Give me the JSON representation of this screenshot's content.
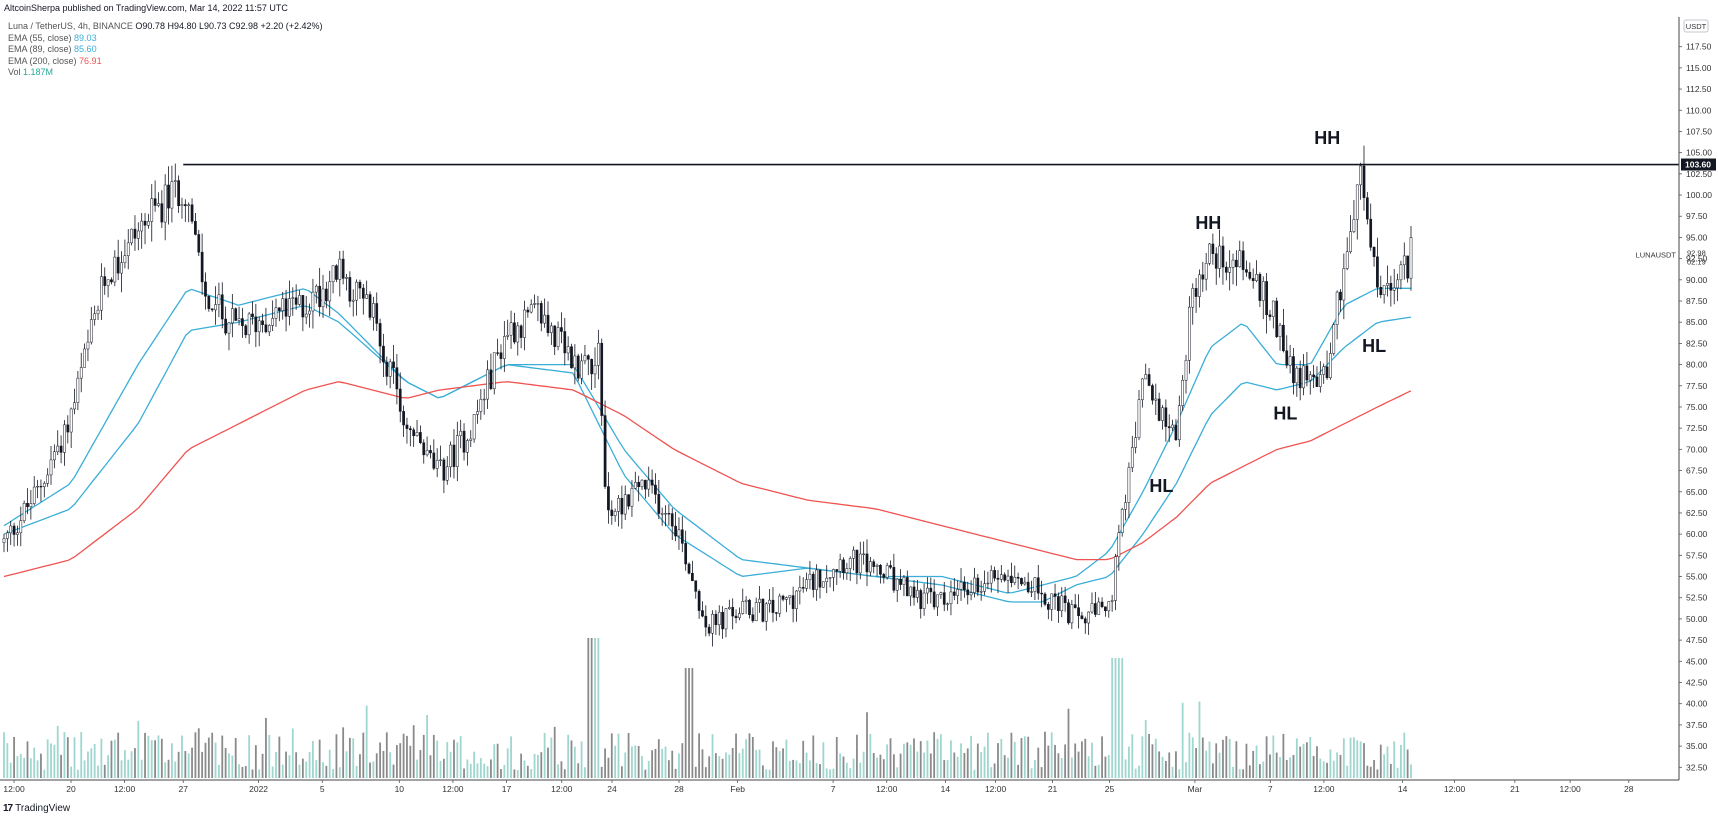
{
  "header": {
    "publisher": "AltcoinSherpa published on TradingView.com, Mar 14, 2022 11:57 UTC"
  },
  "legend": {
    "symbol": "Luna / TetherUS, 4h, BINANCE",
    "ohlc": "O90.78 H94.80 L90.73 C92.98 +2.20 (+2.42%)",
    "indicators": [
      {
        "label": "EMA (55, close)",
        "value": "89.03",
        "color": "#3aaed8"
      },
      {
        "label": "EMA (89, close)",
        "value": "85.60",
        "color": "#3aaed8"
      },
      {
        "label": "EMA (200, close)",
        "value": "76.91",
        "color": "#ef5350"
      },
      {
        "label": "Vol",
        "value": "1.187M",
        "color": "#26a69a"
      }
    ]
  },
  "footer": {
    "brand": "TradingView",
    "logo": "17"
  },
  "chart_data": {
    "type": "candlestick",
    "symbol": "LUNAUSDT",
    "currency": "USDT",
    "ylim": [
      31.0,
      121.0
    ],
    "y_ticks": [
      32.5,
      35.0,
      37.5,
      40.0,
      42.5,
      45.0,
      47.5,
      50.0,
      52.5,
      55.0,
      57.5,
      60.0,
      62.5,
      65.0,
      67.5,
      70.0,
      72.5,
      75.0,
      77.5,
      80.0,
      82.5,
      85.0,
      87.5,
      90.0,
      92.5,
      95.0,
      97.5,
      100.0,
      102.5,
      105.0,
      107.5,
      110.0,
      112.5,
      115.0,
      117.5
    ],
    "x_ticks": [
      "12:00",
      "20",
      "12:00",
      "27",
      "2022",
      "5",
      "10",
      "12:00",
      "17",
      "12:00",
      "24",
      "28",
      "Feb",
      "7",
      "12:00",
      "14",
      "12:00",
      "21",
      "25",
      "Mar",
      "7",
      "12:00",
      "14",
      "12:00",
      "21",
      "12:00",
      "28"
    ],
    "x_tick_frac": [
      0.006,
      0.04,
      0.072,
      0.107,
      0.152,
      0.19,
      0.236,
      0.268,
      0.3,
      0.333,
      0.363,
      0.403,
      0.438,
      0.495,
      0.527,
      0.562,
      0.592,
      0.626,
      0.66,
      0.711,
      0.756,
      0.788,
      0.835,
      0.866,
      0.902,
      0.935,
      0.97
    ],
    "price": {
      "x": [
        0,
        0.02,
        0.04,
        0.06,
        0.08,
        0.1,
        0.108,
        0.12,
        0.14,
        0.16,
        0.18,
        0.2,
        0.22,
        0.24,
        0.26,
        0.28,
        0.3,
        0.32,
        0.34,
        0.355,
        0.36,
        0.38,
        0.4,
        0.42,
        0.44,
        0.46,
        0.48,
        0.5,
        0.52,
        0.54,
        0.56,
        0.58,
        0.6,
        0.62,
        0.64,
        0.66,
        0.665,
        0.68,
        0.7,
        0.71,
        0.72,
        0.74,
        0.76,
        0.77,
        0.78,
        0.79,
        0.8,
        0.81,
        0.82,
        0.83,
        0.84
      ],
      "y": [
        59,
        65,
        74,
        90,
        96,
        100,
        101,
        88,
        84,
        86,
        87,
        91,
        86,
        73,
        67,
        73,
        84,
        86,
        80,
        81,
        62,
        66,
        62,
        49,
        51,
        51,
        54,
        57,
        56,
        53,
        52,
        54,
        56,
        53,
        50,
        51,
        58,
        78,
        72,
        89,
        93,
        92,
        85,
        79,
        78,
        80,
        92,
        102,
        89,
        88,
        93
      ]
    },
    "ema": [
      {
        "name": "EMA (55, close)",
        "color": "#3aaed8",
        "x": [
          0,
          0.04,
          0.08,
          0.11,
          0.14,
          0.18,
          0.2,
          0.24,
          0.26,
          0.3,
          0.34,
          0.37,
          0.4,
          0.44,
          0.48,
          0.52,
          0.56,
          0.6,
          0.62,
          0.64,
          0.66,
          0.68,
          0.7,
          0.72,
          0.74,
          0.76,
          0.78,
          0.8,
          0.82,
          0.84
        ],
        "y": [
          61,
          66,
          80,
          89,
          87,
          89,
          86,
          78,
          76,
          80,
          79,
          67,
          60,
          55,
          56,
          55,
          55,
          53,
          54,
          55,
          58,
          65,
          73,
          82,
          85,
          80,
          80,
          87,
          89,
          89
        ]
      },
      {
        "name": "EMA (89, close)",
        "color": "#3aaed8",
        "x": [
          0,
          0.04,
          0.08,
          0.11,
          0.14,
          0.18,
          0.2,
          0.24,
          0.26,
          0.3,
          0.34,
          0.37,
          0.4,
          0.44,
          0.48,
          0.52,
          0.56,
          0.6,
          0.62,
          0.64,
          0.66,
          0.68,
          0.7,
          0.72,
          0.74,
          0.76,
          0.78,
          0.8,
          0.82,
          0.84
        ],
        "y": [
          60,
          63,
          73,
          84,
          85,
          87,
          85,
          78,
          76,
          80,
          80,
          70,
          63,
          57,
          56,
          55,
          54,
          52,
          52,
          54,
          55,
          60,
          66,
          74,
          78,
          77,
          78,
          82,
          85,
          85.6
        ]
      },
      {
        "name": "EMA (200, close)",
        "color": "#ef5350",
        "x": [
          0,
          0.04,
          0.08,
          0.11,
          0.14,
          0.18,
          0.2,
          0.24,
          0.26,
          0.3,
          0.34,
          0.37,
          0.4,
          0.44,
          0.48,
          0.52,
          0.56,
          0.6,
          0.62,
          0.64,
          0.66,
          0.68,
          0.7,
          0.72,
          0.74,
          0.76,
          0.78,
          0.8,
          0.82,
          0.84
        ],
        "y": [
          55,
          57,
          63,
          70,
          73,
          77,
          78,
          76,
          77,
          78,
          77,
          74,
          70,
          66,
          64,
          63,
          61,
          59,
          58,
          57,
          57,
          59,
          62,
          66,
          68,
          70,
          71,
          73,
          75,
          76.91
        ]
      }
    ],
    "resistance": {
      "value": 103.6,
      "x_start": 0.107
    },
    "last_price": {
      "label": "LUNAUSDT",
      "value": "92.98",
      "countdown": "02:19"
    },
    "price_label": "103.60",
    "annotations": [
      {
        "text": "HH",
        "x": 0.719,
        "price": 96
      },
      {
        "text": "HL",
        "x": 0.691,
        "price": 65
      },
      {
        "text": "HH",
        "x": 0.79,
        "price": 106
      },
      {
        "text": "HL",
        "x": 0.765,
        "price": 73.5
      },
      {
        "text": "HL",
        "x": 0.818,
        "price": 81.5
      }
    ],
    "colors": {
      "up": "#131722",
      "down": "#131722",
      "vol_up": "#9fd6cf",
      "vol_down": "#8a8a8a",
      "resistance": "#131722",
      "grid": "none"
    }
  }
}
